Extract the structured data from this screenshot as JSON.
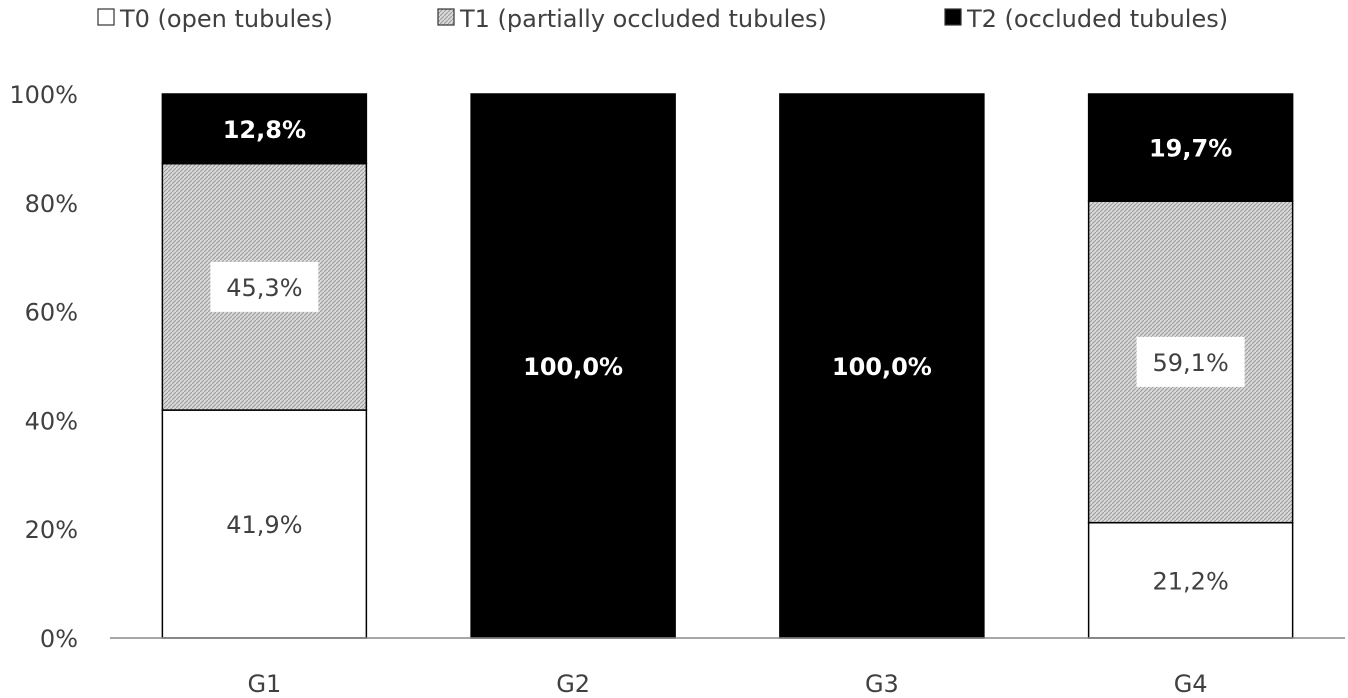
{
  "chart_data": {
    "type": "bar",
    "stacked": true,
    "categories": [
      "G1",
      "G2",
      "G3",
      "G4"
    ],
    "series": [
      {
        "name": "T0 (open tubules)",
        "values": [
          41.9,
          0,
          0,
          21.2
        ],
        "labels": [
          "41,9%",
          "",
          "",
          "21,2%"
        ],
        "fill": "#ffffff",
        "pattern": "none"
      },
      {
        "name": "T1 (partially occluded tubules)",
        "values": [
          45.3,
          0,
          0,
          59.1
        ],
        "labels": [
          "45,3%",
          "",
          "",
          "59,1%"
        ],
        "fill": "#cfcfcf",
        "pattern": "hatched"
      },
      {
        "name": "T2 (occluded tubules)",
        "values": [
          12.8,
          100.0,
          100.0,
          19.7
        ],
        "labels": [
          "12,8%",
          "100,0%",
          "100,0%",
          "19,7%"
        ],
        "fill": "#000000",
        "pattern": "none"
      }
    ],
    "yticks": [
      "0%",
      "20%",
      "40%",
      "60%",
      "80%",
      "100%"
    ],
    "ylim": [
      0,
      100
    ],
    "legend_position": "top",
    "grid": false,
    "title": "",
    "xlabel": "",
    "ylabel": ""
  }
}
